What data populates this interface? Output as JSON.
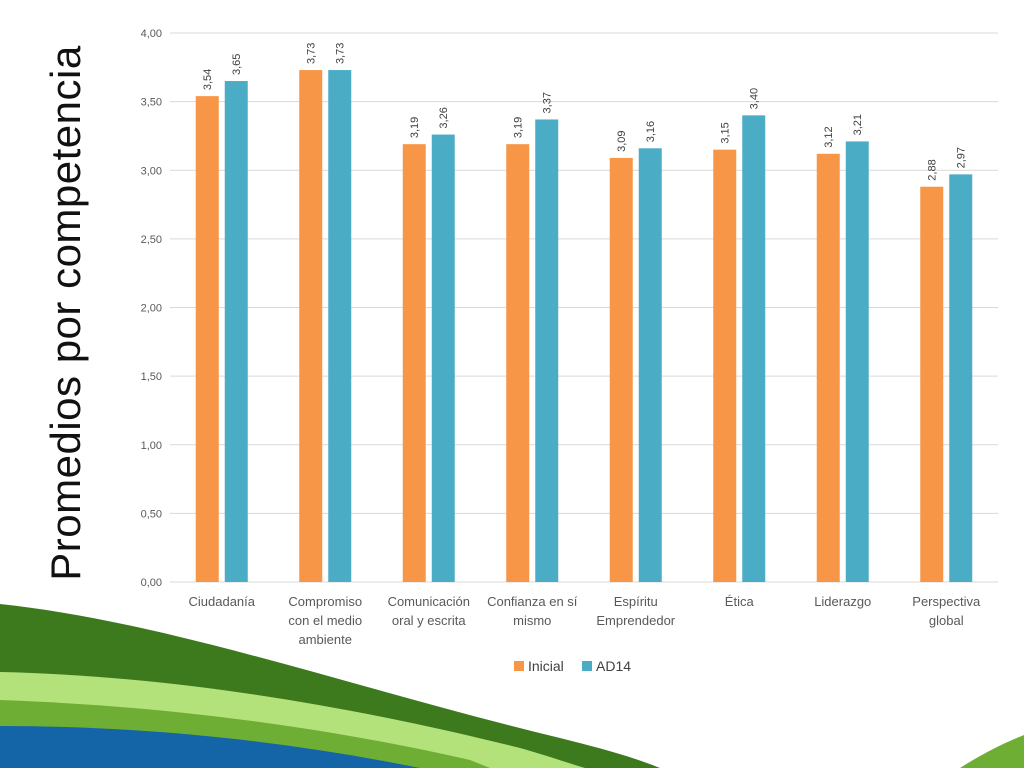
{
  "slide": {
    "title": "Promedios por competencia"
  },
  "colors": {
    "inicial": "#F79646",
    "ad14": "#4BACC6",
    "gridline": "#D9D9D9",
    "axis_text": "#595959",
    "decor_dark_green": "#3D7A1E",
    "decor_mid_green": "#6FAE34",
    "decor_light_green": "#B4E27A",
    "decor_blue": "#1464A8"
  },
  "chart_data": {
    "type": "bar",
    "title": "",
    "xlabel": "",
    "ylabel": "",
    "ylim": [
      0,
      4
    ],
    "y_ticks": [
      "0,00",
      "0,50",
      "1,00",
      "1,50",
      "2,00",
      "2,50",
      "3,00",
      "3,50",
      "4,00"
    ],
    "y_tick_values": [
      0,
      0.5,
      1,
      1.5,
      2,
      2.5,
      3,
      3.5,
      4
    ],
    "grid": true,
    "legend_position": "bottom",
    "categories": [
      "Ciudadanía",
      "Compromiso con el medio ambiente",
      "Comunicación oral y escrita",
      "Confianza en sí mismo",
      "Espíritu Emprendedor",
      "Ética",
      "Liderazgo",
      "Perspectiva global"
    ],
    "category_lines": [
      [
        "Ciudadanía"
      ],
      [
        "Compromiso",
        "con el medio",
        "ambiente"
      ],
      [
        "Comunicación",
        "oral y escrita"
      ],
      [
        "Confianza en sí",
        "mismo"
      ],
      [
        "Espíritu",
        "Emprendedor"
      ],
      [
        "Ética"
      ],
      [
        "Liderazgo"
      ],
      [
        "Perspectiva",
        "global"
      ]
    ],
    "series": [
      {
        "name": "Inicial",
        "values": [
          3.54,
          3.73,
          3.19,
          3.19,
          3.09,
          3.15,
          3.12,
          2.88
        ],
        "labels": [
          "3,54",
          "3,73",
          "3,19",
          "3,19",
          "3,09",
          "3,15",
          "3,12",
          "2,88"
        ]
      },
      {
        "name": "AD14",
        "values": [
          3.65,
          3.73,
          3.26,
          3.37,
          3.16,
          3.4,
          3.21,
          2.97
        ],
        "labels": [
          "3,65",
          "3,73",
          "3,26",
          "3,37",
          "3,16",
          "3,40",
          "3,21",
          "2,97"
        ]
      }
    ]
  }
}
